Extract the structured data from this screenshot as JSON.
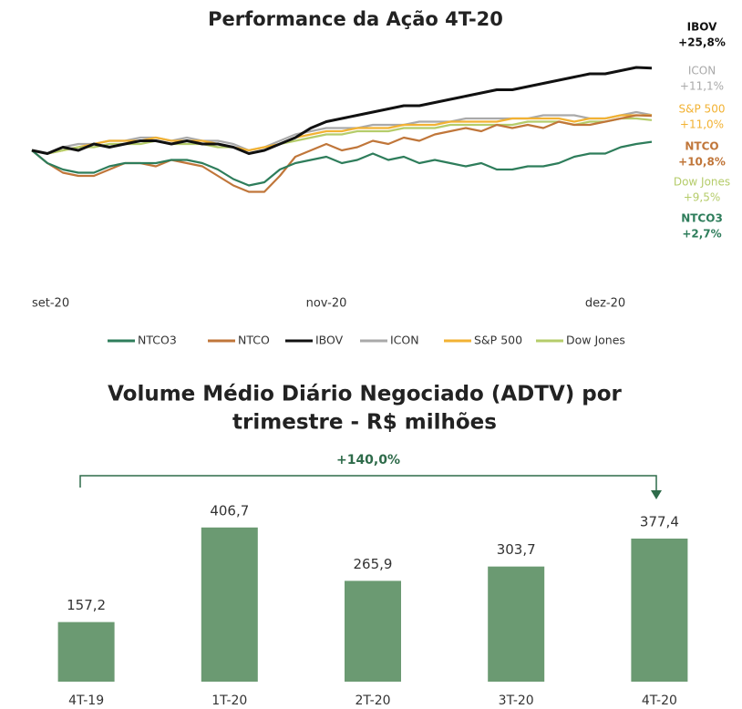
{
  "chart_data": [
    {
      "type": "line",
      "title": "Performance da Ação 4T-20",
      "categories": [
        "set-20",
        null,
        null,
        null,
        null,
        null,
        null,
        null,
        null,
        null,
        null,
        null,
        null,
        null,
        null,
        null,
        null,
        null,
        null,
        "nov-20",
        null,
        null,
        null,
        null,
        null,
        null,
        null,
        null,
        null,
        null,
        null,
        null,
        null,
        null,
        null,
        null,
        null,
        "dez-20",
        null,
        null,
        null
      ],
      "ylim": [
        -20,
        30
      ],
      "series": [
        {
          "name": "NTCO3",
          "color": "#2e7d5b",
          "values": [
            0,
            -4,
            -6,
            -7,
            -7,
            -5,
            -4,
            -4,
            -4,
            -3,
            -3,
            -4,
            -6,
            -9,
            -11,
            -10,
            -6,
            -4,
            -3,
            -2,
            -4,
            -3,
            -1,
            -3,
            -2,
            -4,
            -3,
            -4,
            -5,
            -4,
            -6,
            -6,
            -5,
            -5,
            -4,
            -2,
            -1,
            -1,
            1,
            2,
            2.7
          ],
          "value_labels": [
            null,
            null,
            null,
            null,
            null,
            null,
            null,
            null,
            null,
            null,
            null,
            null,
            null,
            null,
            null,
            null,
            null,
            null,
            null,
            null,
            null,
            null,
            null,
            null,
            null,
            null,
            null,
            null,
            null,
            null,
            null,
            null,
            null,
            null,
            null,
            null,
            null,
            null,
            null,
            null,
            "+2,7%"
          ]
        },
        {
          "name": "NTCO",
          "color": "#c0763a",
          "values": [
            0,
            -4,
            -7,
            -8,
            -8,
            -6,
            -4,
            -4,
            -5,
            -3,
            -4,
            -5,
            -8,
            -11,
            -13,
            -13,
            -8,
            -2,
            0,
            2,
            0,
            1,
            3,
            2,
            4,
            3,
            5,
            6,
            7,
            6,
            8,
            7,
            8,
            7,
            9,
            8,
            8,
            9,
            10,
            11,
            10.8
          ],
          "value_labels": [
            null,
            null,
            null,
            null,
            null,
            null,
            null,
            null,
            null,
            null,
            null,
            null,
            null,
            null,
            null,
            null,
            null,
            null,
            null,
            null,
            null,
            null,
            null,
            null,
            null,
            null,
            null,
            null,
            null,
            null,
            null,
            null,
            null,
            null,
            null,
            null,
            null,
            null,
            null,
            null,
            "+10,8%"
          ]
        },
        {
          "name": "IBOV",
          "color": "#111111",
          "values": [
            0,
            -1,
            1,
            0,
            2,
            1,
            2,
            3,
            3,
            2,
            3,
            2,
            2,
            1,
            -1,
            0,
            2,
            4,
            7,
            9,
            10,
            11,
            12,
            13,
            14,
            14,
            15,
            16,
            17,
            18,
            19,
            19,
            20,
            21,
            22,
            23,
            24,
            24,
            25,
            26,
            25.8
          ],
          "value_labels": [
            null,
            null,
            null,
            null,
            null,
            null,
            null,
            null,
            null,
            null,
            null,
            null,
            null,
            null,
            null,
            null,
            null,
            null,
            null,
            null,
            null,
            null,
            null,
            null,
            null,
            null,
            null,
            null,
            null,
            null,
            null,
            null,
            null,
            null,
            null,
            null,
            null,
            null,
            null,
            null,
            "+25,8%"
          ]
        },
        {
          "name": "ICON",
          "color": "#a9a9a9",
          "values": [
            0,
            -1,
            1,
            2,
            2,
            3,
            3,
            4,
            4,
            3,
            4,
            3,
            3,
            2,
            0,
            1,
            3,
            5,
            6,
            7,
            7,
            7,
            8,
            8,
            8,
            9,
            9,
            9,
            10,
            10,
            10,
            10,
            10,
            11,
            11,
            11,
            10,
            10,
            11,
            12,
            11.1
          ],
          "value_labels": [
            null,
            null,
            null,
            null,
            null,
            null,
            null,
            null,
            null,
            null,
            null,
            null,
            null,
            null,
            null,
            null,
            null,
            null,
            null,
            null,
            null,
            null,
            null,
            null,
            null,
            null,
            null,
            null,
            null,
            null,
            null,
            null,
            null,
            null,
            null,
            null,
            null,
            null,
            null,
            null,
            "+11,1%"
          ]
        },
        {
          "name": "S&P 500",
          "color": "#f2b233",
          "values": [
            0,
            -1,
            0,
            1,
            2,
            3,
            3,
            3,
            4,
            3,
            3,
            3,
            2,
            1,
            0,
            1,
            2,
            4,
            5,
            6,
            6,
            7,
            7,
            7,
            8,
            8,
            8,
            9,
            9,
            9,
            9,
            10,
            10,
            10,
            10,
            9,
            10,
            10,
            11,
            11,
            11.0
          ],
          "value_labels": [
            null,
            null,
            null,
            null,
            null,
            null,
            null,
            null,
            null,
            null,
            null,
            null,
            null,
            null,
            null,
            null,
            null,
            null,
            null,
            null,
            null,
            null,
            null,
            null,
            null,
            null,
            null,
            null,
            null,
            null,
            null,
            null,
            null,
            null,
            null,
            null,
            null,
            null,
            null,
            null,
            "+11,0%"
          ]
        },
        {
          "name": "Dow Jones",
          "color": "#b5cc6a",
          "values": [
            0,
            -1,
            0,
            1,
            1,
            2,
            2,
            2,
            3,
            2,
            2,
            2,
            1,
            1,
            -1,
            0,
            2,
            3,
            4,
            5,
            5,
            6,
            6,
            6,
            7,
            7,
            7,
            8,
            8,
            8,
            8,
            8,
            9,
            9,
            9,
            8,
            9,
            9,
            10,
            10,
            9.5
          ],
          "value_labels": [
            null,
            null,
            null,
            null,
            null,
            null,
            null,
            null,
            null,
            null,
            null,
            null,
            null,
            null,
            null,
            null,
            null,
            null,
            null,
            null,
            null,
            null,
            null,
            null,
            null,
            null,
            null,
            null,
            null,
            null,
            null,
            null,
            null,
            null,
            null,
            null,
            null,
            null,
            null,
            null,
            "+9,5%"
          ]
        }
      ]
    },
    {
      "type": "bar",
      "title": [
        "Volume Médio Diário Negociado (ADTV) por",
        "trimestre - R$ milhões"
      ],
      "categories": [
        "4T-19",
        "1T-20",
        "2T-20",
        "3T-20",
        "4T-20"
      ],
      "values": [
        157.2,
        406.7,
        265.9,
        303.7,
        377.4
      ],
      "value_labels": [
        "157,2",
        "406,7",
        "265,9",
        "303,7",
        "377,4"
      ],
      "color": "#6b9a72",
      "ylim": [
        0,
        500
      ],
      "annotation": "+140,0%"
    }
  ]
}
